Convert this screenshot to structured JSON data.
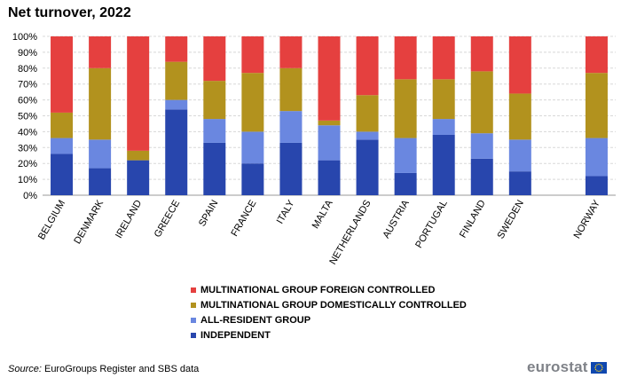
{
  "colors": {
    "foreign": "#e5403f",
    "domestic": "#b2921e",
    "resident": "#6a87e0",
    "independent": "#2846ad",
    "grid": "#d8d8d8",
    "eu_flag": "#0f47af",
    "eu_star": "#ffd617"
  },
  "chart_data": {
    "type": "bar",
    "stacked": true,
    "title": "Net turnover, 2022",
    "xlabel": "",
    "ylabel": "",
    "ylim": [
      0,
      100
    ],
    "y_ticks": [
      "0%",
      "10%",
      "20%",
      "30%",
      "40%",
      "50%",
      "60%",
      "70%",
      "80%",
      "90%",
      "100%"
    ],
    "categories": [
      "BELGIUM",
      "DENMARK",
      "IRELAND",
      "GREECE",
      "SPAIN",
      "FRANCE",
      "ITALY",
      "MALTA",
      "NETHERLANDS",
      "AUSTRIA",
      "PORTUGAL",
      "FINLAND",
      "SWEDEN",
      "",
      "NORWAY"
    ],
    "series": [
      {
        "key": "independent",
        "name": "INDEPENDENT",
        "values": [
          26,
          17,
          22,
          54,
          33,
          20,
          33,
          22,
          35,
          14,
          38,
          23,
          15,
          null,
          12
        ]
      },
      {
        "key": "resident",
        "name": "ALL-RESIDENT GROUP",
        "values": [
          10,
          18,
          0,
          6,
          15,
          20,
          20,
          22,
          5,
          22,
          10,
          16,
          20,
          null,
          24
        ]
      },
      {
        "key": "domestic",
        "name": "MULTINATIONAL GROUP DOMESTICALLY CONTROLLED",
        "values": [
          16,
          45,
          6,
          24,
          24,
          37,
          27,
          3,
          23,
          37,
          25,
          39,
          29,
          null,
          41
        ]
      },
      {
        "key": "foreign",
        "name": "MULTINATIONAL GROUP FOREIGN CONTROLLED",
        "values": [
          48,
          20,
          72,
          16,
          28,
          23,
          20,
          53,
          37,
          27,
          27,
          22,
          36,
          null,
          23
        ]
      }
    ],
    "legend_order": [
      "foreign",
      "domestic",
      "resident",
      "independent"
    ],
    "legend_position": "bottom-center"
  },
  "footer": {
    "source_label": "Source:",
    "source_text": " EuroGroups Register and SBS data",
    "logo_text": "eurostat"
  }
}
